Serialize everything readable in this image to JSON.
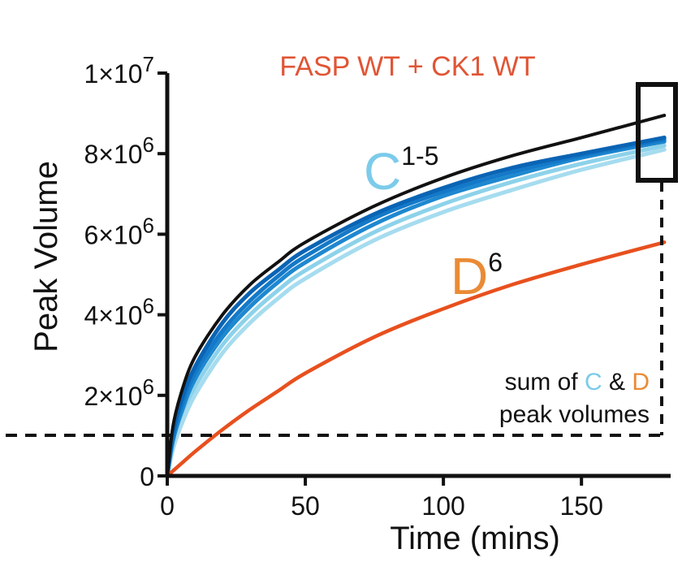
{
  "chart_data": {
    "type": "line",
    "title": "FASP WT + CK1 WT",
    "xlabel": "Time (mins)",
    "ylabel": "Peak Volume",
    "xlim": [
      0,
      182
    ],
    "ylim": [
      0,
      10000000
    ],
    "x_ticks": [
      0,
      50,
      100,
      150
    ],
    "x_tick_labels": [
      "0",
      "50",
      "100",
      "150"
    ],
    "y_ticks": [
      0,
      2000000,
      4000000,
      6000000,
      8000000,
      10000000
    ],
    "y_tick_labels": [
      {
        "base": "0",
        "exp": ""
      },
      {
        "base": "2×10",
        "exp": "6"
      },
      {
        "base": "4×10",
        "exp": "6"
      },
      {
        "base": "6×10",
        "exp": "6"
      },
      {
        "base": "8×10",
        "exp": "6"
      },
      {
        "base": "1×10",
        "exp": "7"
      }
    ],
    "series": [
      {
        "name": "sum of C & D peak volumes",
        "color": "#111111",
        "x": [
          0,
          2,
          5,
          10,
          20,
          30,
          40,
          50,
          75,
          100,
          125,
          150,
          180
        ],
        "values": [
          0,
          1200000,
          2050000,
          2950000,
          4000000,
          4750000,
          5300000,
          5800000,
          6700000,
          7400000,
          7950000,
          8400000,
          8950000
        ]
      },
      {
        "name": "C1",
        "color": "#0a64b4",
        "x": [
          0,
          2,
          5,
          10,
          20,
          30,
          40,
          50,
          75,
          100,
          125,
          150,
          180
        ],
        "values": [
          0,
          1050000,
          1850000,
          2700000,
          3800000,
          4550000,
          5100000,
          5600000,
          6500000,
          7150000,
          7650000,
          8000000,
          8400000
        ]
      },
      {
        "name": "C2",
        "color": "#1479c8",
        "x": [
          0,
          2,
          5,
          10,
          20,
          30,
          40,
          50,
          75,
          100,
          125,
          150,
          180
        ],
        "values": [
          0,
          950000,
          1700000,
          2550000,
          3600000,
          4350000,
          4950000,
          5450000,
          6400000,
          7050000,
          7550000,
          7950000,
          8350000
        ]
      },
      {
        "name": "C3",
        "color": "#1e88d0",
        "x": [
          0,
          2,
          5,
          10,
          20,
          30,
          40,
          50,
          75,
          100,
          125,
          150,
          180
        ],
        "values": [
          0,
          850000,
          1550000,
          2400000,
          3450000,
          4200000,
          4800000,
          5300000,
          6250000,
          6950000,
          7450000,
          7900000,
          8300000
        ]
      },
      {
        "name": "C4",
        "color": "#8cd2ea",
        "x": [
          0,
          2,
          5,
          10,
          20,
          30,
          40,
          50,
          75,
          100,
          125,
          150,
          180
        ],
        "values": [
          0,
          750000,
          1400000,
          2200000,
          3250000,
          4000000,
          4600000,
          5100000,
          6050000,
          6750000,
          7300000,
          7750000,
          8200000
        ]
      },
      {
        "name": "C5",
        "color": "#a6dcef",
        "x": [
          0,
          2,
          5,
          10,
          20,
          30,
          40,
          50,
          75,
          100,
          125,
          150,
          180
        ],
        "values": [
          0,
          650000,
          1250000,
          2000000,
          3050000,
          3800000,
          4400000,
          4900000,
          5850000,
          6550000,
          7100000,
          7600000,
          8100000
        ]
      },
      {
        "name": "D6",
        "color": "#e8501e",
        "x": [
          0,
          5,
          10,
          20,
          30,
          40,
          50,
          75,
          100,
          125,
          150,
          180
        ],
        "values": [
          0,
          300000,
          600000,
          1150000,
          1650000,
          2100000,
          2550000,
          3450000,
          4150000,
          4750000,
          5250000,
          5800000
        ]
      }
    ],
    "reference_line": {
      "y": 1000000,
      "style": "dashed"
    },
    "annotations": {
      "c_letter": "C",
      "c_sup": "1-5",
      "c_color": "#7ccbea",
      "d_letter": "D",
      "d_sup": "6",
      "d_color": "#ea8b35",
      "sum_prefix": "sum of ",
      "sum_c": "C",
      "sum_amp": " & ",
      "sum_d": "D",
      "sum_line2": "peak volumes",
      "title_color": "#e05535"
    }
  }
}
